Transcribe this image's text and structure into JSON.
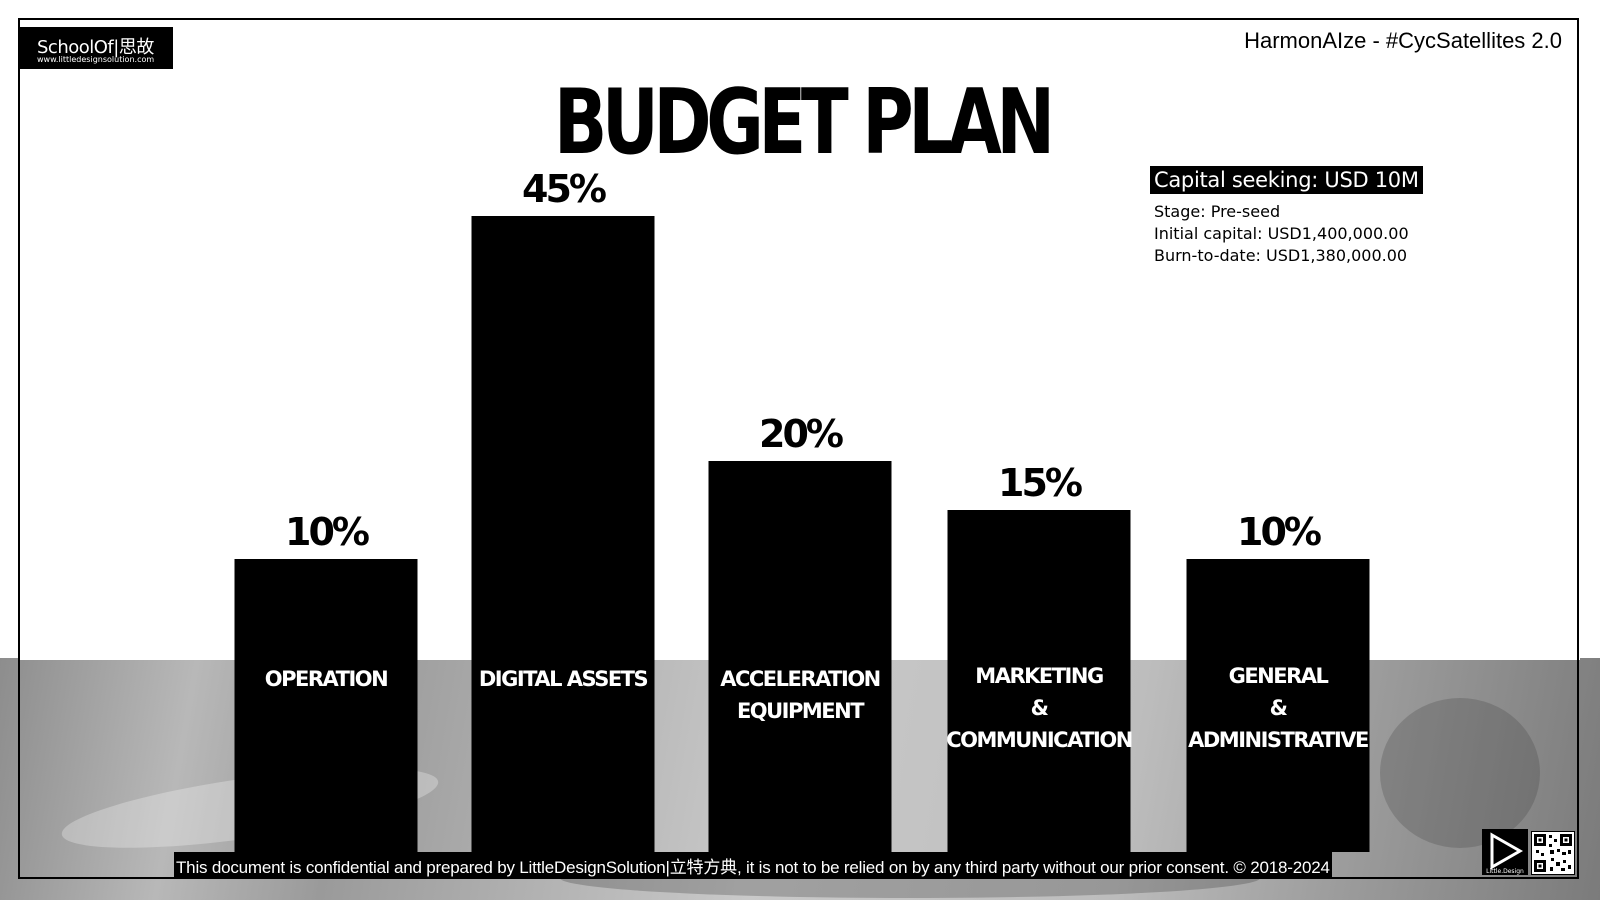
{
  "header": {
    "logo_text": "SchoolOf|思故",
    "logo_url": "www.littledesignsolution.com",
    "project": "HarmonAIze - #CycSatellites 2.0",
    "title": "BUDGET PLAN"
  },
  "info": {
    "capital": "Capital seeking: USD 10M",
    "stage": "Stage: Pre-seed",
    "initial": "Initial capital: USD1,400,000.00",
    "burn": "Burn-to-date: USD1,380,000.00"
  },
  "chart_data": {
    "type": "bar",
    "categories": [
      [
        "OPERATION"
      ],
      [
        "DIGITAL ASSETS"
      ],
      [
        "ACCELERATION",
        "EQUIPMENT"
      ],
      [
        "MARKETING",
        "&",
        "COMMUNICATION"
      ],
      [
        "GENERAL",
        "&",
        "ADMINISTRATIVE"
      ]
    ],
    "values": [
      10,
      45,
      20,
      15,
      10
    ],
    "value_labels": [
      "10%",
      "45%",
      "20%",
      "15%",
      "10%"
    ],
    "bar_color": "#000000",
    "grid": false
  },
  "footer": {
    "text": "This document is confidential and prepared by LittleDesignSolution|立特方典, it is not to be relied on by any third party without our prior consent. © 2018-2024",
    "play_logo_text": "Little.Design"
  },
  "colors": {
    "accent": "#000000",
    "background": "#ffffff",
    "band": "#b0b0b0"
  }
}
